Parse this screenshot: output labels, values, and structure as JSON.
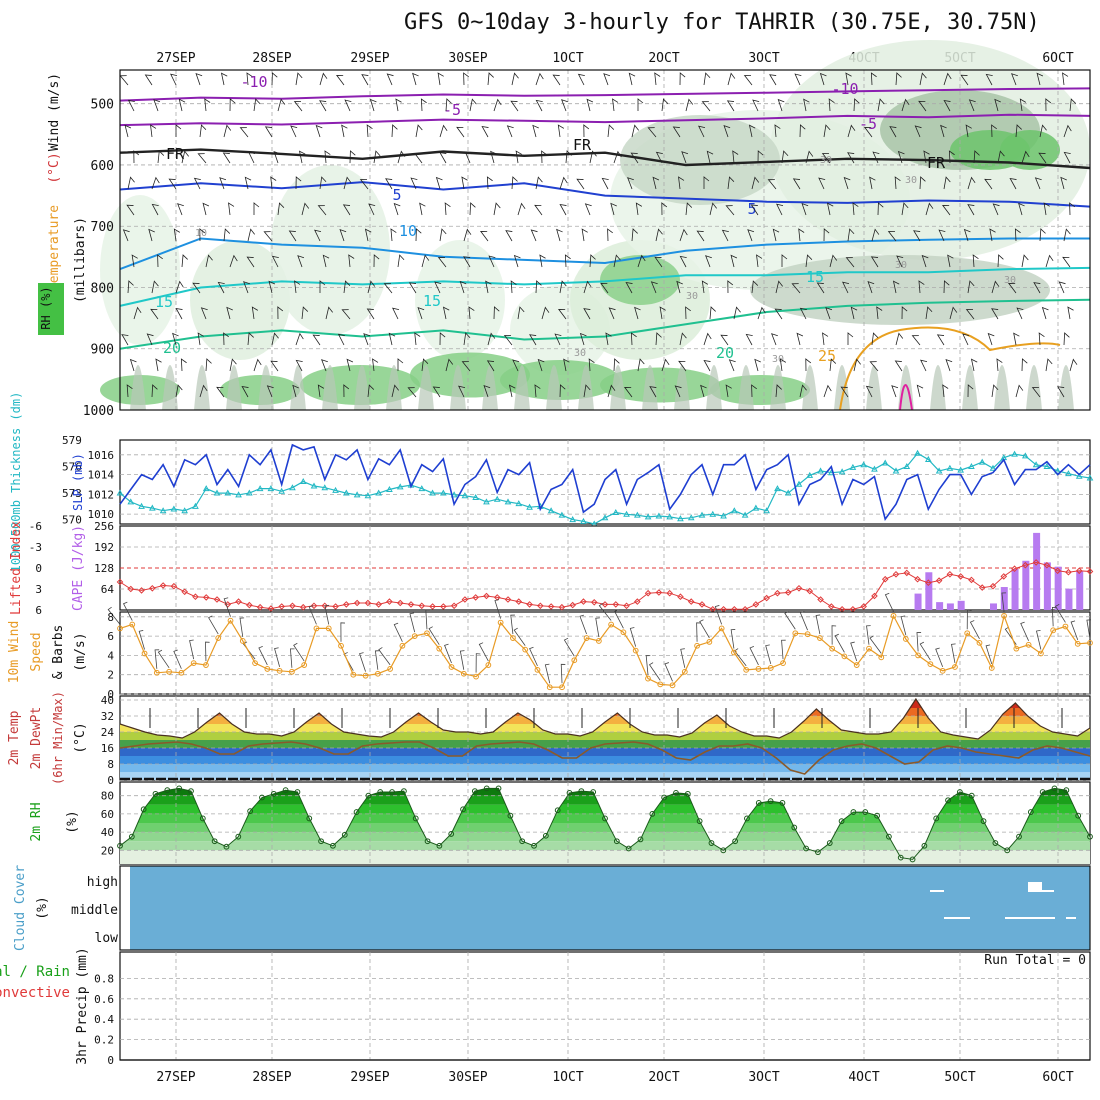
{
  "title": "GFS 0~10day 3-hourly for TAHRIR (30.75E, 30.75N)",
  "run_total": "Run Total = 0",
  "dates": [
    "27SEP",
    "28SEP",
    "29SEP",
    "30SEP",
    "1OCT",
    "2OCT",
    "3OCT",
    "4OCT",
    "5OCT",
    "6OCT"
  ],
  "colors": {
    "slp": "#1f3fd1",
    "thickness": "#22b8c4",
    "lifted": "#e03a3a",
    "cape": "#b25ee8",
    "wind10": "#e89b25",
    "rh_green": "#2fb82f",
    "cloud": "#6aaed6",
    "temp_purple": "#8b1fb0",
    "temp_blue": "#2040d0",
    "temp_teal": "#20c8c8",
    "temp_orange": "#e8a020"
  },
  "chart_data": [
    {
      "type": "area",
      "panel": "pressure-cross-section",
      "ylabel": "Wind (m/s) Temperature (°C) RH (%) (millibars)",
      "yticks": [
        500,
        600,
        700,
        800,
        900,
        1000
      ],
      "ylim": [
        1000,
        445
      ],
      "isotherm_labels": [
        "-10",
        "-5",
        "FR",
        "5",
        "10",
        "15",
        "20",
        "25"
      ],
      "rh_labels": [
        "30",
        "10"
      ],
      "isotherms": [
        {
          "label": "-10",
          "color": "#8b1fb0",
          "values": [
            495,
            490,
            492,
            488,
            485,
            487,
            486,
            484,
            482,
            480,
            478,
            476,
            475
          ]
        },
        {
          "label": "-5",
          "color": "#8b1fb0",
          "values": [
            535,
            532,
            534,
            530,
            526,
            528,
            530,
            527,
            524,
            520,
            522,
            518,
            520
          ]
        },
        {
          "label": "FR",
          "color": "#222222",
          "values": [
            580,
            575,
            582,
            590,
            578,
            585,
            580,
            600,
            595,
            590,
            592,
            596,
            605
          ]
        },
        {
          "label": "5",
          "color": "#2040d0",
          "values": [
            640,
            630,
            638,
            628,
            640,
            630,
            650,
            655,
            660,
            662,
            658,
            660,
            668
          ]
        },
        {
          "label": "10",
          "color": "#1e90e0",
          "values": [
            770,
            720,
            730,
            735,
            750,
            755,
            760,
            740,
            730,
            725,
            722,
            720,
            720
          ]
        },
        {
          "label": "15",
          "color": "#20c8c8",
          "values": [
            830,
            800,
            790,
            795,
            790,
            795,
            790,
            780,
            780,
            775,
            775,
            770,
            768
          ]
        },
        {
          "label": "20",
          "color": "#20c090",
          "values": [
            900,
            880,
            870,
            880,
            870,
            885,
            880,
            860,
            840,
            830,
            825,
            822,
            820
          ]
        }
      ]
    },
    {
      "type": "line",
      "panel": "slp-thickness",
      "ylabel_left": "1000-500mb Thickness (dm)",
      "ylabel_right": "SLP (mb)",
      "yticks_left": [
        570,
        573,
        576,
        579
      ],
      "yticks_right": [
        1010,
        1012,
        1014,
        1016
      ],
      "ylim_left": [
        569.5,
        579
      ],
      "ylim_right": [
        1009,
        1017.5
      ],
      "series": [
        {
          "name": "SLP (mb)",
          "color": "#1f3fd1",
          "values": [
            1011,
            1012.5,
            1014,
            1013.5,
            1015,
            1012.8,
            1015.5,
            1015,
            1016,
            1013,
            1014.5,
            1012.8,
            1016,
            1015,
            1016.5,
            1013,
            1017,
            1016.5,
            1016.8,
            1013.5,
            1016,
            1015.5,
            1016.5,
            1013.5,
            1015.6,
            1015,
            1016.5,
            1012.8,
            1015,
            1014.3,
            1015.6,
            1011,
            1013,
            1013.8,
            1015.5,
            1012.2,
            1014.5,
            1014,
            1015.2,
            1010.5,
            1012.5,
            1013,
            1014.5,
            1010.2,
            1011,
            1013.5,
            1014.5,
            1011,
            1013.5,
            1014.2,
            1015,
            1010.5,
            1012,
            1014,
            1015,
            1012,
            1015,
            1015,
            1016,
            1012.5,
            1014.5,
            1015,
            1016,
            1011,
            1013,
            1013.5,
            1014.8,
            1011,
            1013.5,
            1013,
            1013.8,
            1009.5,
            1011,
            1013.5,
            1014,
            1010.5,
            1012.5,
            1014,
            1014,
            1012,
            1013.8,
            1014.2,
            1015.5,
            1013,
            1014.5,
            1014.5,
            1015.3,
            1014,
            1015,
            1014,
            1015
          ]
        },
        {
          "name": "1000-500mb Thickness (dm)",
          "color": "#22b8c4",
          "values": [
            573,
            572,
            571.5,
            571.3,
            571,
            571.2,
            571,
            571.5,
            573.5,
            573,
            573,
            572.8,
            573,
            573.5,
            573.5,
            573.2,
            573.6,
            574.3,
            573.8,
            573.6,
            573.3,
            573,
            572.8,
            572.7,
            573,
            573.4,
            573.7,
            573.9,
            573.5,
            573,
            573,
            572.8,
            572.7,
            572.5,
            572,
            572.3,
            572,
            571.8,
            571.4,
            571.5,
            571,
            570.5,
            570,
            569.8,
            569.5,
            570.2,
            570.8,
            570.6,
            570.5,
            570.3,
            570.4,
            570.3,
            570.1,
            570.2,
            570.5,
            570.6,
            570.4,
            571,
            570.5,
            571.3,
            571,
            573.5,
            573,
            574,
            575,
            575.5,
            575.3,
            575.4,
            575.9,
            576.2,
            575.7,
            576.4,
            575.5,
            576,
            577.5,
            576.8,
            575.5,
            575.8,
            575.6,
            576,
            576.5,
            575.8,
            577,
            577.4,
            577.2,
            576.2,
            576,
            575.5,
            575.2,
            574.9,
            574.7
          ]
        }
      ]
    },
    {
      "type": "bar",
      "panel": "lifted-index-cape",
      "ylabel_left": "Lifted Index",
      "ylabel_right": "CAPE (J/kg)",
      "yticks_left": [
        -6,
        -3,
        0,
        3,
        6
      ],
      "yticks_right": [
        64,
        128,
        192,
        256
      ],
      "ylim_left": [
        6,
        -6
      ],
      "ylim_right": [
        0,
        256
      ],
      "series": [
        {
          "name": "Lifted Index",
          "color": "#e03a3a",
          "values": [
            2,
            3,
            3.2,
            2.9,
            2.5,
            2.6,
            3.4,
            4.1,
            4.2,
            4.5,
            5.2,
            4.8,
            5.3,
            5.6,
            5.8,
            5.5,
            5.4,
            5.6,
            5.4,
            5.4,
            5.5,
            5.2,
            5,
            5,
            5.2,
            4.8,
            5,
            5.2,
            5.4,
            5.5,
            5.5,
            5.4,
            4.5,
            4.2,
            4,
            4.2,
            4.5,
            4.8,
            5.2,
            5.4,
            5.5,
            5.6,
            5.3,
            4.8,
            4.9,
            5.2,
            5.2,
            5.4,
            4.8,
            3.6,
            3.5,
            3.6,
            4.1,
            4.8,
            5.2,
            6,
            6.3,
            6.5,
            6.4,
            5.2,
            4.3,
            3.6,
            3.5,
            2.9,
            3.3,
            4.5,
            5.5,
            6,
            6.3,
            5.5,
            4,
            1.6,
            0.9,
            0.7,
            1.6,
            2.1,
            1.8,
            0.9,
            1.2,
            1.7,
            2.8,
            2.6,
            1.2,
            0.1,
            -0.4,
            -0.8,
            -0.4,
            0.4,
            0.6,
            0.4,
            0.5
          ]
        },
        {
          "name": "CAPE (J/kg)",
          "color": "#b25ee8",
          "values": [
            0,
            0,
            0,
            0,
            0,
            0,
            0,
            0,
            0,
            0,
            0,
            0,
            0,
            0,
            0,
            0,
            0,
            0,
            0,
            0,
            0,
            0,
            0,
            0,
            0,
            0,
            0,
            0,
            0,
            0,
            0,
            0,
            0,
            0,
            0,
            0,
            0,
            0,
            0,
            0,
            0,
            0,
            0,
            0,
            0,
            0,
            0,
            0,
            0,
            0,
            0,
            0,
            0,
            0,
            0,
            0,
            0,
            0,
            0,
            0,
            0,
            0,
            0,
            0,
            0,
            0,
            0,
            0,
            0,
            0,
            0,
            0,
            0,
            0,
            50,
            115,
            24,
            20,
            28,
            0,
            0,
            20,
            70,
            125,
            150,
            235,
            145,
            132,
            65,
            120,
            0
          ]
        }
      ]
    },
    {
      "type": "line",
      "panel": "wind-10m",
      "ylabel": "10m Wind Speed & Barbs (m/s)",
      "yticks": [
        0,
        2,
        4,
        6,
        8
      ],
      "ylim": [
        0,
        8.5
      ],
      "series": [
        {
          "name": "10m Wind Speed",
          "color": "#e89b25",
          "values": [
            6.8,
            7.2,
            4.2,
            2.2,
            2.3,
            2.2,
            3.2,
            3,
            5.8,
            7.6,
            5.5,
            3.2,
            2.6,
            2.4,
            2.3,
            3,
            6.8,
            6.8,
            5,
            2,
            1.9,
            2.1,
            2.6,
            5,
            6,
            6.3,
            4.7,
            2.8,
            2.1,
            1.8,
            3,
            7.4,
            5.8,
            4.6,
            2.5,
            0.7,
            0.7,
            3.5,
            5.8,
            5.5,
            7.2,
            6.4,
            4.5,
            1.6,
            1,
            0.9,
            2.3,
            5,
            5.4,
            6.8,
            4.3,
            2.5,
            2.6,
            2.7,
            3.2,
            6.3,
            6.2,
            5.8,
            4.7,
            3.9,
            3,
            4.7,
            3.8,
            8.1,
            5.7,
            4,
            3.1,
            2.4,
            2.8,
            6.3,
            5.3,
            2.7,
            8.1,
            4.7,
            5.1,
            4.2,
            6.6,
            7,
            5.2,
            5.3
          ]
        }
      ]
    },
    {
      "type": "area",
      "panel": "temperature-2m",
      "ylabel": "2m Temp 2m DewPt (6hr Min/Max) (°C)",
      "yticks": [
        0,
        8,
        16,
        24,
        32,
        40
      ],
      "ylim": [
        0,
        42
      ],
      "series": [
        {
          "name": "2m Temp",
          "color": "#4a3020",
          "values": [
            28,
            26,
            24,
            22.5,
            22,
            21,
            24,
            29,
            33.5,
            28,
            24,
            23,
            23,
            22,
            24,
            29,
            33.5,
            28,
            24,
            23,
            22,
            21.5,
            24,
            29,
            33.5,
            29,
            25,
            24,
            24,
            23,
            24,
            29,
            33.5,
            30,
            25,
            23,
            23,
            22,
            24,
            29,
            33.5,
            28,
            24,
            22.5,
            22.5,
            21.5,
            23.5,
            28.5,
            32.5,
            27,
            24,
            22,
            22,
            21,
            24,
            29.5,
            35.5,
            30,
            25,
            24,
            23,
            23,
            24,
            31,
            40.5,
            31,
            24,
            22.5,
            21.5,
            20.5,
            25,
            33,
            38.5,
            32,
            27,
            24,
            23,
            22,
            26
          ]
        },
        {
          "name": "2m DewPt",
          "color": "#8a5a2a",
          "values": [
            16,
            17,
            18,
            18.5,
            19,
            18,
            16,
            13,
            13,
            17,
            18,
            18.5,
            19,
            18,
            16,
            13,
            13,
            17,
            18,
            18.5,
            19,
            19,
            16,
            12,
            12,
            17,
            18,
            18.5,
            19,
            18,
            15,
            11,
            11,
            16,
            18,
            18.5,
            19,
            18,
            15,
            11,
            10,
            14,
            17,
            17,
            18,
            16,
            11,
            5,
            3,
            10,
            15,
            17,
            18,
            16,
            12,
            8,
            9,
            15,
            17,
            16,
            14,
            13,
            12,
            11,
            15,
            17,
            16,
            14,
            12
          ]
        }
      ]
    },
    {
      "type": "area",
      "panel": "rh-2m",
      "ylabel": "2m RH (%)",
      "yticks": [
        20,
        40,
        60,
        80
      ],
      "ylim": [
        5,
        95
      ],
      "series": [
        {
          "name": "2m RH",
          "color": "#1aa01a",
          "values": [
            25,
            35,
            65,
            82,
            86,
            88,
            85,
            55,
            30,
            24,
            35,
            63,
            78,
            82,
            86,
            84,
            55,
            30,
            25,
            37,
            62,
            80,
            84,
            84,
            85,
            55,
            30,
            25,
            38,
            65,
            85,
            88,
            88,
            58,
            30,
            25,
            36,
            64,
            83,
            85,
            84,
            55,
            30,
            22,
            32,
            60,
            78,
            83,
            82,
            52,
            28,
            20,
            30,
            55,
            72,
            74,
            72,
            45,
            22,
            18,
            28,
            52,
            62,
            62,
            58,
            35,
            12,
            10,
            25,
            55,
            75,
            84,
            80,
            52,
            28,
            20,
            35,
            62,
            84,
            88,
            86,
            58,
            35
          ]
        }
      ]
    },
    {
      "type": "heatmap",
      "panel": "cloud-cover",
      "ylabel": "Cloud Cover (%)",
      "yticks": [
        "high",
        "middle",
        "low"
      ],
      "bg_color": "#6aaed6"
    },
    {
      "type": "bar",
      "panel": "precipitation",
      "ylabel": "3hr Precip (mm)",
      "legend": [
        "Total / Rain",
        "Convective"
      ],
      "yticks": [
        0,
        0.2,
        0.4,
        0.6,
        0.8
      ],
      "ylim": [
        0,
        1
      ],
      "values": []
    }
  ]
}
